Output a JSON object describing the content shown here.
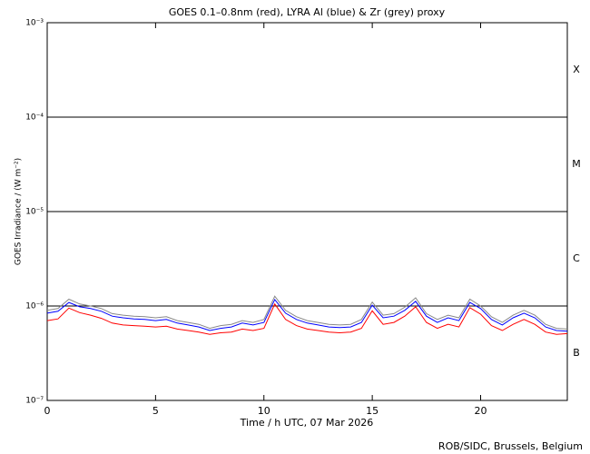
{
  "chart_data": {
    "type": "line",
    "title": "GOES 0.1–0.8nm (red), LYRA Al (blue) & Zr (grey) proxy",
    "x_label": "Time / h UTC, 07 Mar 2026",
    "y_label": "GOES Irradiance / (W m⁻²)",
    "footer": "ROB/SIDC, Brussels, Belgium",
    "class_labels": [
      "X",
      "M",
      "C",
      "B"
    ],
    "log_y": true,
    "grid": true,
    "xlim": [
      0,
      24
    ],
    "xticks": [
      0,
      5,
      10,
      15,
      20
    ],
    "ylim": [
      1e-07,
      0.001
    ],
    "yticks": [
      {
        "value": 1e-07,
        "label": "10⁻⁷"
      },
      {
        "value": 1e-06,
        "label": "10⁻⁶"
      },
      {
        "value": 1e-05,
        "label": "10⁻⁵"
      },
      {
        "value": 0.0001,
        "label": "10⁻⁴"
      },
      {
        "value": 0.001,
        "label": "10⁻³"
      }
    ],
    "x": [
      0,
      0.5,
      1,
      1.5,
      2,
      2.5,
      3,
      3.5,
      4,
      4.5,
      5,
      5.5,
      6,
      6.5,
      7,
      7.5,
      8,
      8.5,
      9,
      9.5,
      10,
      10.5,
      11,
      11.5,
      12,
      12.5,
      13,
      13.5,
      14,
      14.5,
      15,
      15.5,
      16,
      16.5,
      17,
      17.5,
      18,
      18.5,
      19,
      19.5,
      20,
      20.5,
      21,
      21.5,
      22,
      22.5,
      23,
      23.5,
      24
    ],
    "series": [
      {
        "name": "Zr (grey)",
        "color": "#888888",
        "values": [
          9e-07,
          9.4e-07,
          1.18e-06,
          1.05e-06,
          1e-06,
          9.4e-07,
          8.3e-07,
          8e-07,
          7.8e-07,
          7.7e-07,
          7.5e-07,
          7.7e-07,
          7e-07,
          6.7e-07,
          6.4e-07,
          5.8e-07,
          6.2e-07,
          6.4e-07,
          7e-07,
          6.7e-07,
          7.2e-07,
          1.27e-06,
          9e-07,
          7.7e-07,
          7e-07,
          6.7e-07,
          6.4e-07,
          6.3e-07,
          6.4e-07,
          7.2e-07,
          1.1e-06,
          8e-07,
          8.3e-07,
          9.7e-07,
          1.22e-06,
          8.3e-07,
          7.2e-07,
          8e-07,
          7.5e-07,
          1.18e-06,
          1e-06,
          7.7e-07,
          6.7e-07,
          8e-07,
          9e-07,
          8e-07,
          6.4e-07,
          5.8e-07,
          5.7e-07
        ]
      },
      {
        "name": "LYRA Al (blue)",
        "color": "#0000ff",
        "values": [
          8.4e-07,
          8.8e-07,
          1.09e-06,
          9.8e-07,
          9.4e-07,
          8.8e-07,
          7.8e-07,
          7.5e-07,
          7.3e-07,
          7.2e-07,
          7e-07,
          7.2e-07,
          6.6e-07,
          6.3e-07,
          6e-07,
          5.5e-07,
          5.8e-07,
          6e-07,
          6.6e-07,
          6.3e-07,
          6.7e-07,
          1.17e-06,
          8.4e-07,
          7.2e-07,
          6.6e-07,
          6.3e-07,
          6e-07,
          5.9e-07,
          6e-07,
          6.7e-07,
          1.02e-06,
          7.5e-07,
          7.8e-07,
          9e-07,
          1.12e-06,
          7.8e-07,
          6.7e-07,
          7.5e-07,
          7e-07,
          1.09e-06,
          9.4e-07,
          7.2e-07,
          6.3e-07,
          7.5e-07,
          8.4e-07,
          7.5e-07,
          6e-07,
          5.5e-07,
          5.4e-07
        ]
      },
      {
        "name": "GOES (red)",
        "color": "#ff0000",
        "values": [
          7e-07,
          7.3e-07,
          9.5e-07,
          8.5e-07,
          8e-07,
          7.4e-07,
          6.6e-07,
          6.3e-07,
          6.2e-07,
          6.1e-07,
          6e-07,
          6.1e-07,
          5.7e-07,
          5.5e-07,
          5.3e-07,
          5e-07,
          5.2e-07,
          5.3e-07,
          5.7e-07,
          5.5e-07,
          5.8e-07,
          1.05e-06,
          7.2e-07,
          6.2e-07,
          5.7e-07,
          5.5e-07,
          5.3e-07,
          5.2e-07,
          5.3e-07,
          5.8e-07,
          8.9e-07,
          6.4e-07,
          6.7e-07,
          7.8e-07,
          9.8e-07,
          6.7e-07,
          5.8e-07,
          6.4e-07,
          6e-07,
          9.6e-07,
          8.2e-07,
          6.2e-07,
          5.5e-07,
          6.4e-07,
          7.2e-07,
          6.4e-07,
          5.3e-07,
          5e-07,
          5.1e-07
        ]
      }
    ]
  }
}
